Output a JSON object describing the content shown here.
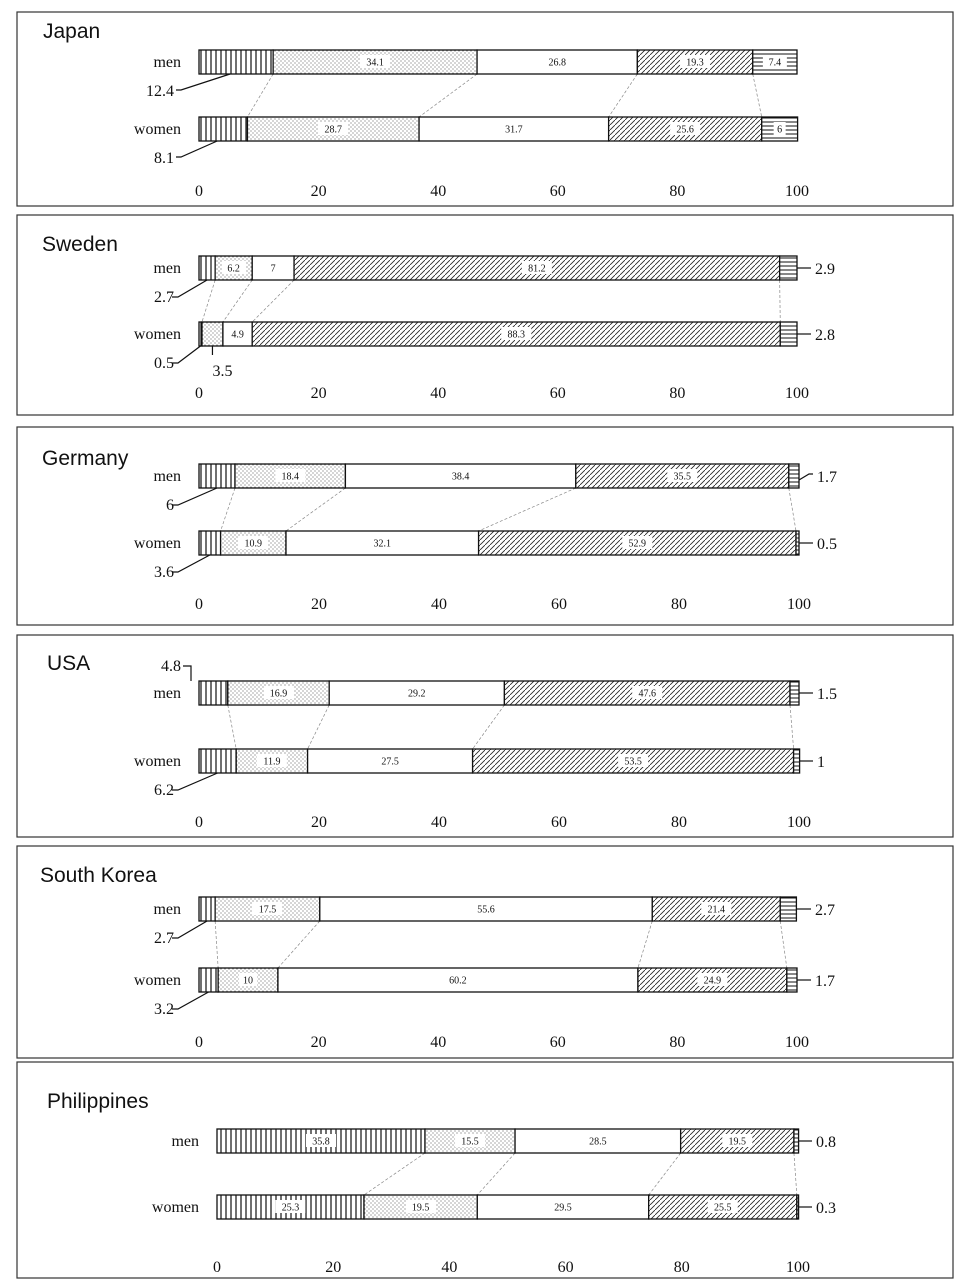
{
  "chart_data": [
    {
      "type": "bar",
      "stacked": true,
      "orientation": "horizontal",
      "title": "Japan",
      "categories": [
        "men",
        "women"
      ],
      "values": [
        [
          12.4,
          34.1,
          26.8,
          19.3,
          7.4
        ],
        [
          8.1,
          28.7,
          31.7,
          25.6,
          6
        ]
      ],
      "xlim": [
        0,
        100
      ],
      "xticks": [
        "0",
        "20",
        "40",
        "60",
        "80",
        "100"
      ],
      "inside_labels": [
        [
          "",
          "34.1",
          "26.8",
          "19.3",
          "7.4"
        ],
        [
          "",
          "28.7",
          "31.7",
          "25.6",
          "6"
        ]
      ],
      "outside_labels": [
        {
          "row": 0,
          "text": "12.4",
          "side": "left"
        },
        {
          "row": 1,
          "text": "8.1",
          "side": "left"
        }
      ]
    },
    {
      "type": "bar",
      "stacked": true,
      "orientation": "horizontal",
      "title": "Sweden",
      "categories": [
        "men",
        "women"
      ],
      "values": [
        [
          2.7,
          6.2,
          7,
          81.2,
          2.9
        ],
        [
          0.5,
          3.5,
          4.9,
          88.3,
          2.8
        ]
      ],
      "xlim": [
        0,
        100
      ],
      "xticks": [
        "0",
        "20",
        "40",
        "60",
        "80",
        "100"
      ],
      "inside_labels": [
        [
          "",
          "6.2",
          "7",
          "81.2",
          ""
        ],
        [
          "",
          "",
          "4.9",
          "88.3",
          ""
        ]
      ],
      "outside_labels": [
        {
          "row": 0,
          "text": "2.7",
          "side": "left"
        },
        {
          "row": 0,
          "text": "2.9",
          "side": "right"
        },
        {
          "row": 1,
          "text": "0.5",
          "side": "left"
        },
        {
          "row": 1,
          "text": "3.5",
          "side": "below"
        },
        {
          "row": 1,
          "text": "2.8",
          "side": "right"
        }
      ]
    },
    {
      "type": "bar",
      "stacked": true,
      "orientation": "horizontal",
      "title": "Germany",
      "categories": [
        "men",
        "women"
      ],
      "values": [
        [
          6,
          18.4,
          38.4,
          35.5,
          1.7
        ],
        [
          3.6,
          10.9,
          32.1,
          52.9,
          0.5
        ]
      ],
      "xlim": [
        0,
        100
      ],
      "xticks": [
        "0",
        "20",
        "40",
        "60",
        "80",
        "100"
      ],
      "inside_labels": [
        [
          "",
          "18.4",
          "38.4",
          "35.5",
          ""
        ],
        [
          "",
          "10.9",
          "32.1",
          "52.9",
          ""
        ]
      ],
      "outside_labels": [
        {
          "row": 0,
          "text": "6",
          "side": "left"
        },
        {
          "row": 0,
          "text": "1.7",
          "side": "right"
        },
        {
          "row": 1,
          "text": "3.6",
          "side": "left"
        },
        {
          "row": 1,
          "text": "0.5",
          "side": "right"
        }
      ]
    },
    {
      "type": "bar",
      "stacked": true,
      "orientation": "horizontal",
      "title": "USA",
      "categories": [
        "men",
        "women"
      ],
      "values": [
        [
          4.8,
          16.9,
          29.2,
          47.6,
          1.5
        ],
        [
          6.2,
          11.9,
          27.5,
          53.5,
          1
        ]
      ],
      "xlim": [
        0,
        100
      ],
      "xticks": [
        "0",
        "20",
        "40",
        "60",
        "80",
        "100"
      ],
      "inside_labels": [
        [
          "",
          "16.9",
          "29.2",
          "47.6",
          ""
        ],
        [
          "",
          "11.9",
          "27.5",
          "53.5",
          ""
        ]
      ],
      "outside_labels": [
        {
          "row": 0,
          "text": "4.8",
          "side": "above"
        },
        {
          "row": 0,
          "text": "1.5",
          "side": "right"
        },
        {
          "row": 1,
          "text": "6.2",
          "side": "left"
        },
        {
          "row": 1,
          "text": "1",
          "side": "right"
        }
      ]
    },
    {
      "type": "bar",
      "stacked": true,
      "orientation": "horizontal",
      "title": "South Korea",
      "categories": [
        "men",
        "women"
      ],
      "values": [
        [
          2.7,
          17.5,
          55.6,
          21.4,
          2.7
        ],
        [
          3.2,
          10,
          60.2,
          24.9,
          1.7
        ]
      ],
      "xlim": [
        0,
        100
      ],
      "xticks": [
        "0",
        "20",
        "40",
        "60",
        "80",
        "100"
      ],
      "inside_labels": [
        [
          "",
          "17.5",
          "55.6",
          "21.4",
          ""
        ],
        [
          "",
          "10",
          "60.2",
          "24.9",
          ""
        ]
      ],
      "outside_labels": [
        {
          "row": 0,
          "text": "2.7",
          "side": "left"
        },
        {
          "row": 0,
          "text": "2.7",
          "side": "right"
        },
        {
          "row": 1,
          "text": "3.2",
          "side": "left"
        },
        {
          "row": 1,
          "text": "1.7",
          "side": "right"
        }
      ]
    },
    {
      "type": "bar",
      "stacked": true,
      "orientation": "horizontal",
      "title": "Philippines",
      "categories": [
        "men",
        "women"
      ],
      "values": [
        [
          35.8,
          15.5,
          28.5,
          19.5,
          0.8
        ],
        [
          25.3,
          19.5,
          29.5,
          25.5,
          0.3
        ]
      ],
      "xlim": [
        0,
        100
      ],
      "xticks": [
        "0",
        "20",
        "40",
        "60",
        "80",
        "100"
      ],
      "inside_labels": [
        [
          "35.8",
          "15.5",
          "28.5",
          "19.5",
          ""
        ],
        [
          "25.3",
          "19.5",
          "29.5",
          "25.5",
          ""
        ]
      ],
      "outside_labels": [
        {
          "row": 0,
          "text": "0.8",
          "side": "right"
        },
        {
          "row": 1,
          "text": "0.3",
          "side": "right"
        }
      ]
    }
  ]
}
